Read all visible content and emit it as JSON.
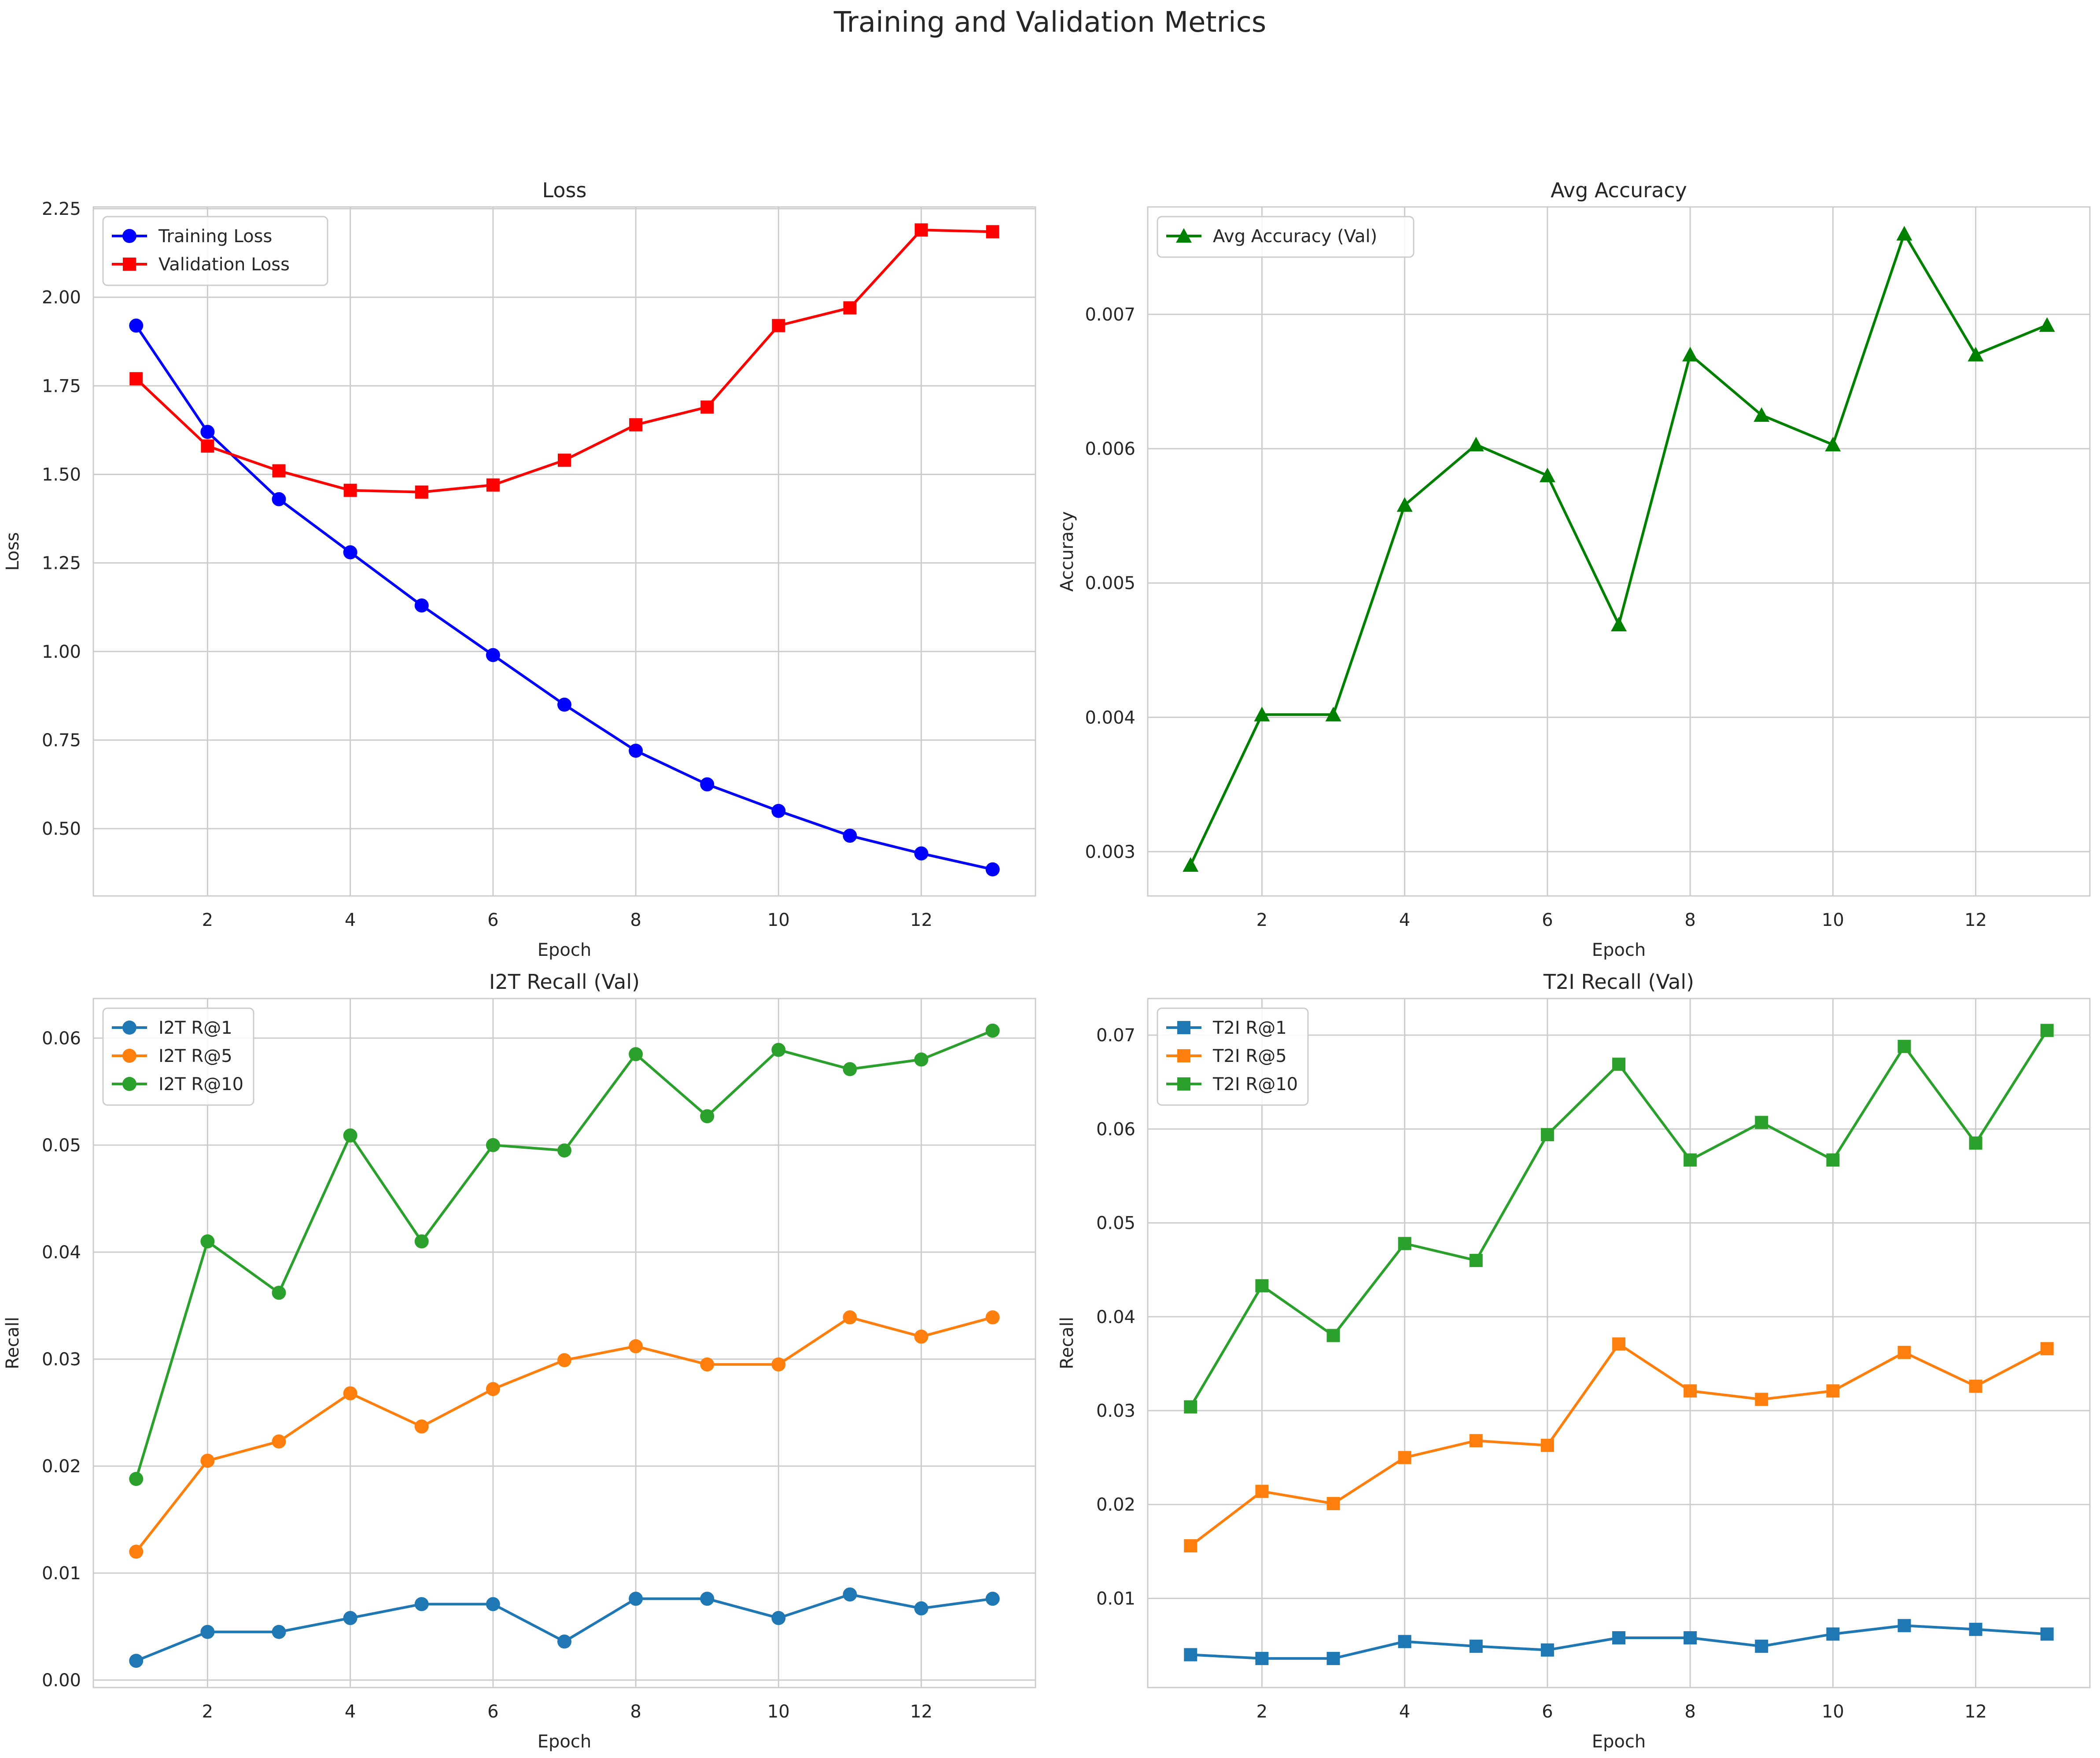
{
  "figure_title": "Training and Validation Metrics",
  "chart_data": [
    {
      "type": "line",
      "title": "Loss",
      "xlabel": "Epoch",
      "ylabel": "Loss",
      "x": [
        1,
        2,
        3,
        4,
        5,
        6,
        7,
        8,
        9,
        10,
        11,
        12,
        13
      ],
      "xlim": [
        0.4,
        13.6
      ],
      "ylim": [
        0.31,
        2.255
      ],
      "xticks": [
        2,
        4,
        6,
        8,
        10,
        12
      ],
      "xtick_labels": [
        "2",
        "4",
        "6",
        "8",
        "10",
        "12"
      ],
      "yticks": [
        0.5,
        0.75,
        1.0,
        1.25,
        1.5,
        1.75,
        2.0,
        2.25
      ],
      "ytick_labels": [
        "0.50",
        "0.75",
        "1.00",
        "1.25",
        "1.50",
        "1.75",
        "2.00",
        "2.25"
      ],
      "grid": true,
      "legend_position": "upper-left",
      "series": [
        {
          "name": "Training Loss",
          "color": "#0000ff",
          "marker": "circle",
          "values": [
            1.92,
            1.62,
            1.43,
            1.28,
            1.13,
            0.99,
            0.85,
            0.72,
            0.625,
            0.55,
            0.48,
            0.43,
            0.385
          ]
        },
        {
          "name": "Validation Loss",
          "color": "#ff0000",
          "marker": "square",
          "values": [
            1.77,
            1.58,
            1.51,
            1.455,
            1.45,
            1.47,
            1.54,
            1.64,
            1.69,
            1.92,
            1.97,
            2.19,
            2.185
          ]
        }
      ]
    },
    {
      "type": "line",
      "title": "Avg Accuracy",
      "xlabel": "Epoch",
      "ylabel": "Accuracy",
      "x": [
        1,
        2,
        3,
        4,
        5,
        6,
        7,
        8,
        9,
        10,
        11,
        12,
        13
      ],
      "xlim": [
        0.4,
        13.6
      ],
      "ylim": [
        0.00267,
        0.0078
      ],
      "xticks": [
        2,
        4,
        6,
        8,
        10,
        12
      ],
      "xtick_labels": [
        "2",
        "4",
        "6",
        "8",
        "10",
        "12"
      ],
      "yticks": [
        0.003,
        0.004,
        0.005,
        0.006,
        0.007
      ],
      "ytick_labels": [
        "0.003",
        "0.004",
        "0.005",
        "0.006",
        "0.007"
      ],
      "grid": true,
      "legend_position": "upper-left",
      "series": [
        {
          "name": "Avg Accuracy (Val)",
          "color": "#008000",
          "marker": "triangle",
          "values": [
            0.0029,
            0.00402,
            0.00402,
            0.00558,
            0.00603,
            0.0058,
            0.00469,
            0.0067,
            0.00625,
            0.00603,
            0.0076,
            0.0067,
            0.00692
          ]
        }
      ]
    },
    {
      "type": "line",
      "title": "I2T Recall (Val)",
      "xlabel": "Epoch",
      "ylabel": "Recall",
      "x": [
        1,
        2,
        3,
        4,
        5,
        6,
        7,
        8,
        9,
        10,
        11,
        12,
        13
      ],
      "xlim": [
        0.4,
        13.6
      ],
      "ylim": [
        -0.0007,
        0.0637
      ],
      "xticks": [
        2,
        4,
        6,
        8,
        10,
        12
      ],
      "xtick_labels": [
        "2",
        "4",
        "6",
        "8",
        "10",
        "12"
      ],
      "yticks": [
        0.0,
        0.01,
        0.02,
        0.03,
        0.04,
        0.05,
        0.06
      ],
      "ytick_labels": [
        "0.00",
        "0.01",
        "0.02",
        "0.03",
        "0.04",
        "0.05",
        "0.06"
      ],
      "grid": true,
      "legend_position": "upper-left",
      "series": [
        {
          "name": "I2T R@1",
          "color": "#1f77b4",
          "marker": "circle",
          "values": [
            0.0018,
            0.0045,
            0.0045,
            0.0058,
            0.0071,
            0.0071,
            0.0036,
            0.0076,
            0.0076,
            0.0058,
            0.008,
            0.0067,
            0.0076
          ]
        },
        {
          "name": "I2T R@5",
          "color": "#ff7f0e",
          "marker": "circle",
          "values": [
            0.012,
            0.0205,
            0.0223,
            0.0268,
            0.0237,
            0.0272,
            0.0299,
            0.0312,
            0.0295,
            0.0295,
            0.0339,
            0.0321,
            0.0339
          ]
        },
        {
          "name": "I2T R@10",
          "color": "#2ca02c",
          "marker": "circle",
          "values": [
            0.0188,
            0.041,
            0.0362,
            0.0509,
            0.041,
            0.05,
            0.0495,
            0.0585,
            0.0527,
            0.0589,
            0.0571,
            0.058,
            0.0607
          ]
        }
      ]
    },
    {
      "type": "line",
      "title": "T2I Recall (Val)",
      "xlabel": "Epoch",
      "ylabel": "Recall",
      "x": [
        1,
        2,
        3,
        4,
        5,
        6,
        7,
        8,
        9,
        10,
        11,
        12,
        13
      ],
      "xlim": [
        0.4,
        13.6
      ],
      "ylim": [
        0.0005,
        0.0739
      ],
      "xticks": [
        2,
        4,
        6,
        8,
        10,
        12
      ],
      "xtick_labels": [
        "2",
        "4",
        "6",
        "8",
        "10",
        "12"
      ],
      "yticks": [
        0.01,
        0.02,
        0.03,
        0.04,
        0.05,
        0.06,
        0.07
      ],
      "ytick_labels": [
        "0.01",
        "0.02",
        "0.03",
        "0.04",
        "0.05",
        "0.06",
        "0.07"
      ],
      "grid": true,
      "legend_position": "upper-left",
      "series": [
        {
          "name": "T2I R@1",
          "color": "#1f77b4",
          "marker": "square",
          "values": [
            0.004,
            0.0036,
            0.0036,
            0.0054,
            0.0049,
            0.0045,
            0.0058,
            0.0058,
            0.0049,
            0.0062,
            0.0071,
            0.0067,
            0.0062
          ]
        },
        {
          "name": "T2I R@5",
          "color": "#ff7f0e",
          "marker": "square",
          "values": [
            0.0156,
            0.0214,
            0.0201,
            0.025,
            0.0268,
            0.0263,
            0.0371,
            0.0321,
            0.0312,
            0.0321,
            0.0362,
            0.0326,
            0.0366
          ]
        },
        {
          "name": "T2I R@10",
          "color": "#2ca02c",
          "marker": "square",
          "values": [
            0.0304,
            0.0433,
            0.038,
            0.0478,
            0.046,
            0.0594,
            0.0669,
            0.0567,
            0.0607,
            0.0567,
            0.0688,
            0.0585,
            0.0705
          ]
        }
      ]
    }
  ]
}
